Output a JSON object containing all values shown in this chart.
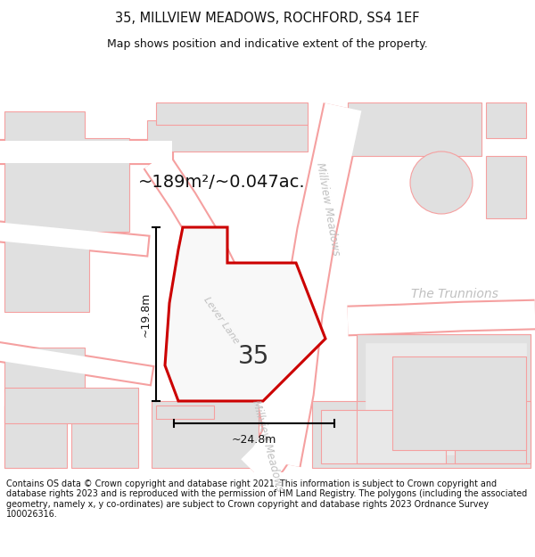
{
  "title": "35, MILLVIEW MEADOWS, ROCHFORD, SS4 1EF",
  "subtitle": "Map shows position and indicative extent of the property.",
  "area_label": "~189m²/~0.047ac.",
  "plot_number": "35",
  "dim_width": "~24.8m",
  "dim_height": "~19.8m",
  "copyright_text": "Contains OS data © Crown copyright and database right 2021. This information is subject to Crown copyright and database rights 2023 and is reproduced with the permission of HM Land Registry. The polygons (including the associated geometry, namely x, y co-ordinates) are subject to Crown copyright and database rights 2023 Ordnance Survey 100026316.",
  "bg_color": "#f0f0f0",
  "road_fill": "#ffffff",
  "road_edge": "#f5a0a0",
  "building_fill": "#e0e0e0",
  "building_edge": "#f5a0a0",
  "plot_outline_color": "#cc0000",
  "plot_fill": "#f8f8f8",
  "street_label_color": "#c0c0c0",
  "figsize": [
    6.0,
    6.25
  ],
  "dpi": 100
}
